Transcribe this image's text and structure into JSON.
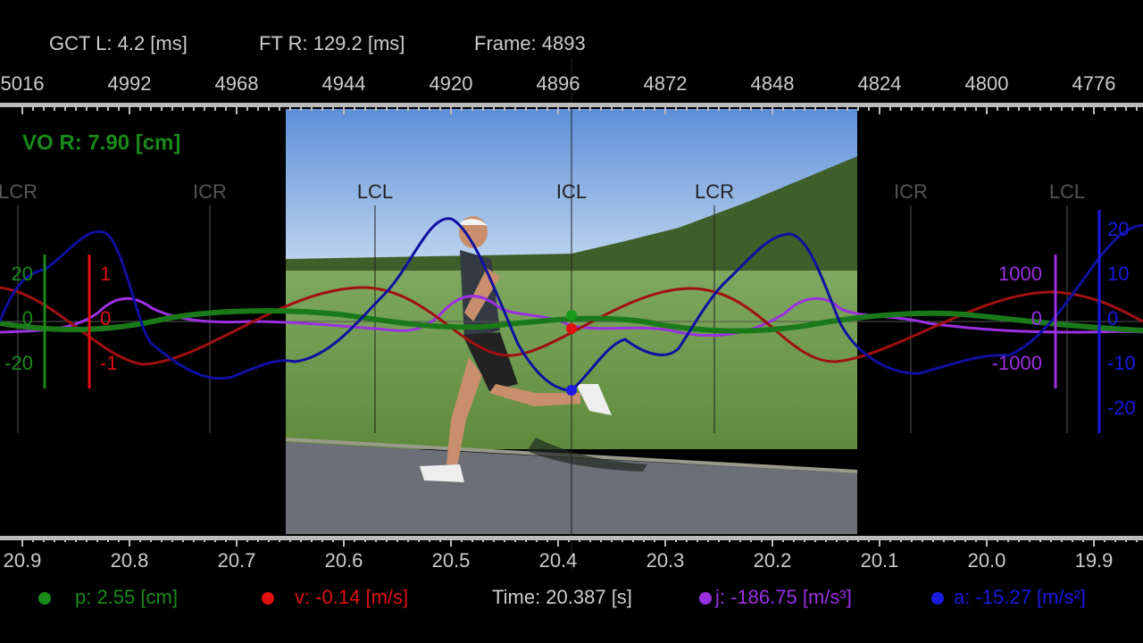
{
  "header": {
    "gct": "GCT L: 4.2 [ms]",
    "ft": "FT R: 129.2 [ms]",
    "frame": "Frame: 4893"
  },
  "frame_axis": {
    "labels": [
      "5016",
      "4992",
      "4968",
      "4944",
      "4920",
      "4896",
      "4872",
      "4848",
      "4824",
      "4800",
      "4776"
    ]
  },
  "vo": "VO R: 7.90 [cm]",
  "events": [
    "LCR",
    "ICR",
    "LCL",
    "ICL",
    "LCR",
    "ICR",
    "LCL"
  ],
  "scales": {
    "p": [
      "20",
      "0",
      "-20"
    ],
    "v": [
      "1",
      "0",
      "-1"
    ],
    "j": [
      "1000",
      "0",
      "-1000"
    ],
    "a": [
      "20",
      "10",
      "0",
      "-10",
      "-20"
    ]
  },
  "time_axis": {
    "labels": [
      "20.9",
      "20.8",
      "20.7",
      "20.6",
      "20.5",
      "20.4",
      "20.3",
      "20.2",
      "20.1",
      "20.0",
      "19.9"
    ]
  },
  "footer": {
    "p": "p: 2.55 [cm]",
    "v": "v: -0.14 [m/s]",
    "time": "Time: 20.387 [s]",
    "j": "j: -186.75 [m/s³]",
    "a": "a: -15.27 [m/s²]"
  }
}
